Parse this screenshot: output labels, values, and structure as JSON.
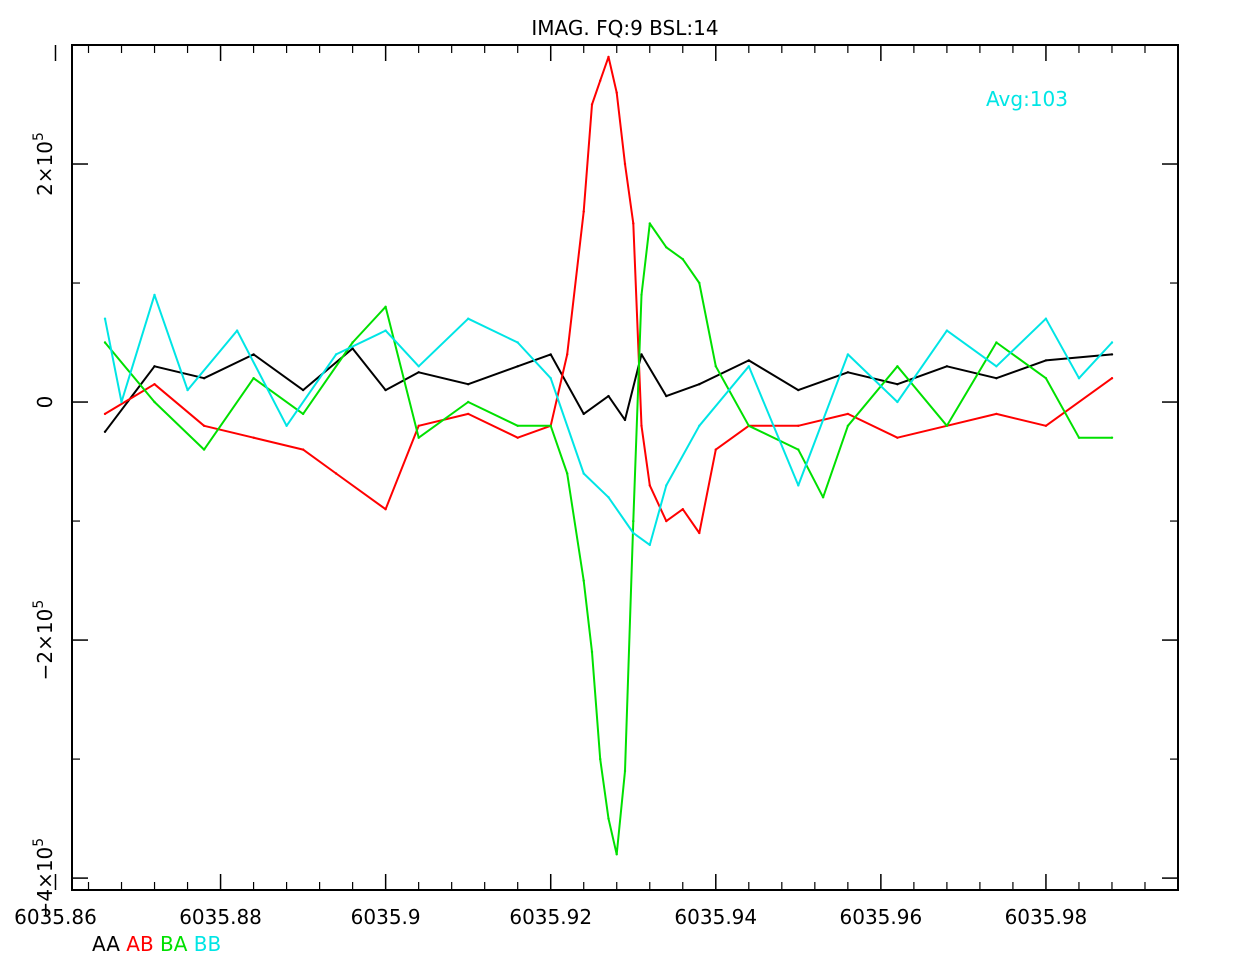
{
  "chart_data": {
    "type": "line",
    "title": "IMAG. FQ:9 BSL:14",
    "annotation": {
      "text": "Avg:103",
      "color": "#00e5e5"
    },
    "xlim": [
      6035.862,
      6035.996
    ],
    "ylim": [
      -410000,
      300000
    ],
    "x_ticks": [
      {
        "value": 6035.86,
        "label": "6035.86"
      },
      {
        "value": 6035.88,
        "label": "6035.88"
      },
      {
        "value": 6035.9,
        "label": "6035.9"
      },
      {
        "value": 6035.92,
        "label": "6035.92"
      },
      {
        "value": 6035.94,
        "label": "6035.94"
      },
      {
        "value": 6035.96,
        "label": "6035.96"
      },
      {
        "value": 6035.98,
        "label": "6035.98"
      }
    ],
    "y_ticks": [
      {
        "value": 200000,
        "mantissa": "2×10",
        "exp": "5"
      },
      {
        "value": 0,
        "mantissa": "0",
        "exp": ""
      },
      {
        "value": -200000,
        "mantissa": "−2×10",
        "exp": "5"
      },
      {
        "value": -400000,
        "mantissa": "−4×10",
        "exp": "5"
      }
    ],
    "grid": false,
    "legend_position": "bottom-left",
    "series": [
      {
        "name": "AA",
        "color": "#000000",
        "x": [
          6035.866,
          6035.872,
          6035.878,
          6035.884,
          6035.89,
          6035.896,
          6035.9,
          6035.904,
          6035.91,
          6035.916,
          6035.92,
          6035.924,
          6035.927,
          6035.929,
          6035.931,
          6035.934,
          6035.938,
          6035.944,
          6035.95,
          6035.956,
          6035.962,
          6035.968,
          6035.974,
          6035.98,
          6035.988
        ],
        "y": [
          -25000,
          30000,
          20000,
          40000,
          10000,
          45000,
          10000,
          25000,
          15000,
          30000,
          40000,
          -10000,
          5000,
          -15000,
          40000,
          5000,
          15000,
          35000,
          10000,
          25000,
          15000,
          30000,
          20000,
          35000,
          40000
        ]
      },
      {
        "name": "AB",
        "color": "#ff0000",
        "x": [
          6035.866,
          6035.872,
          6035.878,
          6035.884,
          6035.89,
          6035.894,
          6035.9,
          6035.904,
          6035.91,
          6035.916,
          6035.92,
          6035.922,
          6035.924,
          6035.925,
          6035.926,
          6035.927,
          6035.928,
          6035.929,
          6035.93,
          6035.931,
          6035.932,
          6035.934,
          6035.936,
          6035.938,
          6035.94,
          6035.944,
          6035.95,
          6035.956,
          6035.962,
          6035.968,
          6035.974,
          6035.98,
          6035.988
        ],
        "y": [
          -10000,
          15000,
          -20000,
          -30000,
          -40000,
          -60000,
          -90000,
          -20000,
          -10000,
          -30000,
          -20000,
          40000,
          160000,
          250000,
          270000,
          290000,
          260000,
          200000,
          150000,
          -20000,
          -70000,
          -100000,
          -90000,
          -110000,
          -40000,
          -20000,
          -20000,
          -10000,
          -30000,
          -20000,
          -10000,
          -20000,
          20000
        ]
      },
      {
        "name": "BA",
        "color": "#00e000",
        "x": [
          6035.866,
          6035.872,
          6035.878,
          6035.884,
          6035.89,
          6035.896,
          6035.9,
          6035.904,
          6035.91,
          6035.916,
          6035.92,
          6035.922,
          6035.924,
          6035.925,
          6035.926,
          6035.927,
          6035.928,
          6035.929,
          6035.93,
          6035.931,
          6035.932,
          6035.934,
          6035.936,
          6035.938,
          6035.94,
          6035.944,
          6035.95,
          6035.953,
          6035.956,
          6035.962,
          6035.968,
          6035.974,
          6035.98,
          6035.984,
          6035.988
        ],
        "y": [
          50000,
          0,
          -40000,
          20000,
          -10000,
          50000,
          80000,
          -30000,
          0,
          -20000,
          -20000,
          -60000,
          -150000,
          -210000,
          -300000,
          -350000,
          -380000,
          -310000,
          -100000,
          90000,
          150000,
          130000,
          120000,
          100000,
          30000,
          -20000,
          -40000,
          -80000,
          -20000,
          30000,
          -20000,
          50000,
          20000,
          -30000,
          -30000
        ]
      },
      {
        "name": "BB",
        "color": "#00e5e5",
        "x": [
          6035.866,
          6035.868,
          6035.872,
          6035.876,
          6035.882,
          6035.888,
          6035.894,
          6035.9,
          6035.904,
          6035.91,
          6035.916,
          6035.92,
          6035.924,
          6035.927,
          6035.93,
          6035.932,
          6035.934,
          6035.938,
          6035.944,
          6035.95,
          6035.956,
          6035.962,
          6035.968,
          6035.974,
          6035.98,
          6035.984,
          6035.988
        ],
        "y": [
          70000,
          0,
          90000,
          10000,
          60000,
          -20000,
          40000,
          60000,
          30000,
          70000,
          50000,
          20000,
          -60000,
          -80000,
          -110000,
          -120000,
          -70000,
          -20000,
          30000,
          -70000,
          40000,
          0,
          60000,
          30000,
          70000,
          20000,
          50000
        ]
      }
    ]
  }
}
